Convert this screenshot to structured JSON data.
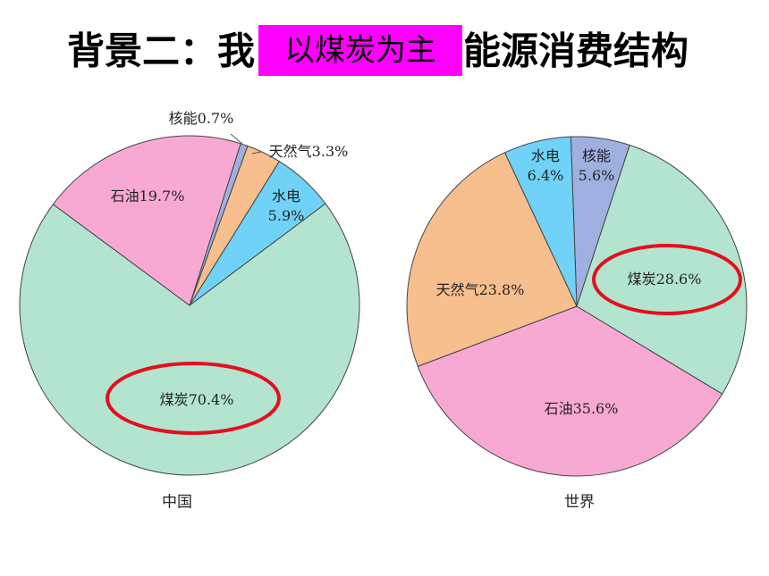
{
  "header": {
    "title_left": "背景二：我",
    "highlight": "以煤炭为主",
    "title_right": "能源消费结构"
  },
  "chart_data": [
    {
      "type": "pie",
      "title": "中国",
      "categories": [
        "核能",
        "天然气",
        "水电",
        "煤炭",
        "石油"
      ],
      "values": [
        0.7,
        3.3,
        5.9,
        70.4,
        19.7
      ],
      "value_labels": [
        "0.7%",
        "3.3%",
        "5.9%",
        "70.4%",
        "19.7%"
      ],
      "colors": [
        "#9fb0e0",
        "#f8bf8e",
        "#6fd2f6",
        "#b3e4d0",
        "#f8a9d3"
      ]
    },
    {
      "type": "pie",
      "title": "世界",
      "categories": [
        "核能",
        "煤炭",
        "石油",
        "天然气",
        "水电"
      ],
      "values": [
        5.6,
        28.6,
        35.6,
        23.8,
        6.4
      ],
      "value_labels": [
        "5.6%",
        "28.6%",
        "35.6%",
        "23.8%",
        "6.4%"
      ],
      "colors": [
        "#9fb0e0",
        "#b3e4d0",
        "#f8a9d3",
        "#f8bf8e",
        "#6fd2f6"
      ]
    }
  ]
}
